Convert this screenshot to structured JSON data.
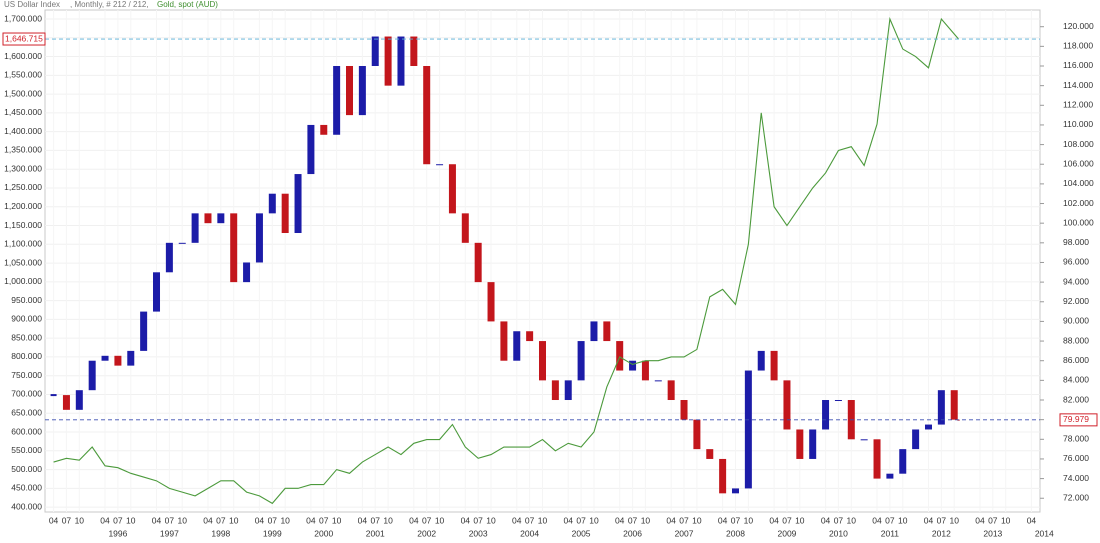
{
  "chart_data": {
    "type": "candlestick_line",
    "header": ", Monthly, # 212 / 212,",
    "x": [
      "1995-04",
      "1995-07",
      "1995-10",
      "1996-01",
      "1996-04",
      "1996-07",
      "1996-10",
      "1997-01",
      "1997-04",
      "1997-07",
      "1997-10",
      "1998-01",
      "1998-04",
      "1998-07",
      "1998-10",
      "1999-01",
      "1999-04",
      "1999-07",
      "1999-10",
      "2000-01",
      "2000-04",
      "2000-07",
      "2000-10",
      "2001-01",
      "2001-04",
      "2001-07",
      "2001-10",
      "2002-01",
      "2002-04",
      "2002-07",
      "2002-10",
      "2003-01",
      "2003-04",
      "2003-07",
      "2003-10",
      "2004-01",
      "2004-04",
      "2004-07",
      "2004-10",
      "2005-01",
      "2005-04",
      "2005-07",
      "2005-10",
      "2006-01",
      "2006-04",
      "2006-07",
      "2006-10",
      "2007-01",
      "2007-04",
      "2007-07",
      "2007-10",
      "2008-01",
      "2008-04",
      "2008-07",
      "2008-10",
      "2009-01",
      "2009-04",
      "2009-07",
      "2009-10",
      "2010-01",
      "2010-04",
      "2010-07",
      "2010-10",
      "2011-01",
      "2011-04",
      "2011-07",
      "2011-10",
      "2012-01",
      "2012-04",
      "2012-07",
      "2012-10",
      "2012-11"
    ],
    "xlim": [
      "1995-02",
      "2014-06"
    ],
    "year_labels": [
      1996,
      1997,
      1998,
      1999,
      2000,
      2001,
      2002,
      2003,
      2004,
      2005,
      2006,
      2007,
      2008,
      2009,
      2010,
      2011,
      2012,
      2013,
      2014
    ],
    "month_labels": [
      "04",
      "07",
      "10"
    ],
    "series": [
      {
        "name": "US Dollar Index",
        "axis": "y2",
        "style": "candle",
        "up_color": "#1c1ca8",
        "down_color": "#c3161c",
        "color": "#1c1ca8",
        "values": [
          82.5,
          81,
          83,
          86,
          86.5,
          85.5,
          87,
          91,
          95,
          98,
          98,
          101,
          100,
          101,
          94,
          96,
          101,
          103,
          99,
          105,
          110,
          109,
          116,
          111,
          116,
          119,
          114,
          119,
          116,
          106,
          106,
          101,
          98,
          94,
          90,
          86,
          89,
          88,
          84,
          82,
          84,
          88,
          90,
          88,
          85,
          86,
          84,
          84,
          82,
          80,
          77,
          76,
          72.5,
          73,
          85,
          87,
          84,
          79,
          76,
          79,
          82,
          82,
          78,
          78,
          74,
          74.5,
          77,
          79,
          79.5,
          83,
          80,
          79.979
        ],
        "last_label": "79.979",
        "last_color": "#3a4db0"
      },
      {
        "name": "Gold, spot (AUD)",
        "axis": "y",
        "style": "line",
        "color": "#4c9a3c",
        "values": [
          520,
          530,
          525,
          560,
          510,
          505,
          490,
          480,
          470,
          450,
          440,
          430,
          450,
          470,
          470,
          440,
          430,
          410,
          450,
          450,
          460,
          460,
          500,
          490,
          520,
          540,
          560,
          540,
          570,
          580,
          580,
          620,
          560,
          530,
          540,
          560,
          560,
          560,
          580,
          550,
          570,
          560,
          600,
          720,
          800,
          780,
          790,
          790,
          800,
          800,
          820,
          960,
          980,
          940,
          1100,
          1450,
          1200,
          1150,
          1200,
          1250,
          1290,
          1350,
          1360,
          1310,
          1420,
          1700,
          1620,
          1600,
          1570,
          1700,
          1660,
          1646.715
        ],
        "last_label": "1,646.715",
        "last_color": "#5ab0d8"
      }
    ],
    "ylim": [
      387,
      1724
    ],
    "yticks": [
      {
        "value": 400,
        "label": "400.000"
      },
      {
        "value": 450,
        "label": "450.000"
      },
      {
        "value": 500,
        "label": "500.000"
      },
      {
        "value": 550,
        "label": "550.000"
      },
      {
        "value": 600,
        "label": "600.000"
      },
      {
        "value": 650,
        "label": "650.000"
      },
      {
        "value": 700,
        "label": "700.000"
      },
      {
        "value": 750,
        "label": "750.000"
      },
      {
        "value": 800,
        "label": "800.000"
      },
      {
        "value": 850,
        "label": "850.000"
      },
      {
        "value": 900,
        "label": "900.000"
      },
      {
        "value": 950,
        "label": "950.000"
      },
      {
        "value": 1000,
        "label": "1,000.000"
      },
      {
        "value": 1050,
        "label": "1,050.000"
      },
      {
        "value": 1100,
        "label": "1,100.000"
      },
      {
        "value": 1150,
        "label": "1,150.000"
      },
      {
        "value": 1200,
        "label": "1,200.000"
      },
      {
        "value": 1250,
        "label": "1,250.000"
      },
      {
        "value": 1300,
        "label": "1,300.000"
      },
      {
        "value": 1350,
        "label": "1,350.000"
      },
      {
        "value": 1400,
        "label": "1,400.000"
      },
      {
        "value": 1450,
        "label": "1,450.000"
      },
      {
        "value": 1500,
        "label": "1,500.000"
      },
      {
        "value": 1550,
        "label": "1,550.000"
      },
      {
        "value": 1600,
        "label": "1,600.000"
      },
      {
        "value": 1650,
        "label": "1,650.000"
      },
      {
        "value": 1700,
        "label": "1,700.000"
      }
    ],
    "y2lim": [
      70.6,
      121.7
    ],
    "y2ticks": [
      {
        "value": 72,
        "label": "72.000"
      },
      {
        "value": 74,
        "label": "74.000"
      },
      {
        "value": 76,
        "label": "76.000"
      },
      {
        "value": 78,
        "label": "78.000"
      },
      {
        "value": 80,
        "label": "80.000"
      },
      {
        "value": 82,
        "label": "82.000"
      },
      {
        "value": 84,
        "label": "84.000"
      },
      {
        "value": 86,
        "label": "86.000"
      },
      {
        "value": 88,
        "label": "88.000"
      },
      {
        "value": 90,
        "label": "90.000"
      },
      {
        "value": 92,
        "label": "92.000"
      },
      {
        "value": 94,
        "label": "94.000"
      },
      {
        "value": 96,
        "label": "96.000"
      },
      {
        "value": 98,
        "label": "98.000"
      },
      {
        "value": 100,
        "label": "100.000"
      },
      {
        "value": 102,
        "label": "102.000"
      },
      {
        "value": 104,
        "label": "104.000"
      },
      {
        "value": 106,
        "label": "106.000"
      },
      {
        "value": 108,
        "label": "108.000"
      },
      {
        "value": 110,
        "label": "110.000"
      },
      {
        "value": 112,
        "label": "112.000"
      },
      {
        "value": 114,
        "label": "114.000"
      },
      {
        "value": 116,
        "label": "116.000"
      },
      {
        "value": 118,
        "label": "118.000"
      },
      {
        "value": 120,
        "label": "120.000"
      }
    ],
    "grid": true
  }
}
